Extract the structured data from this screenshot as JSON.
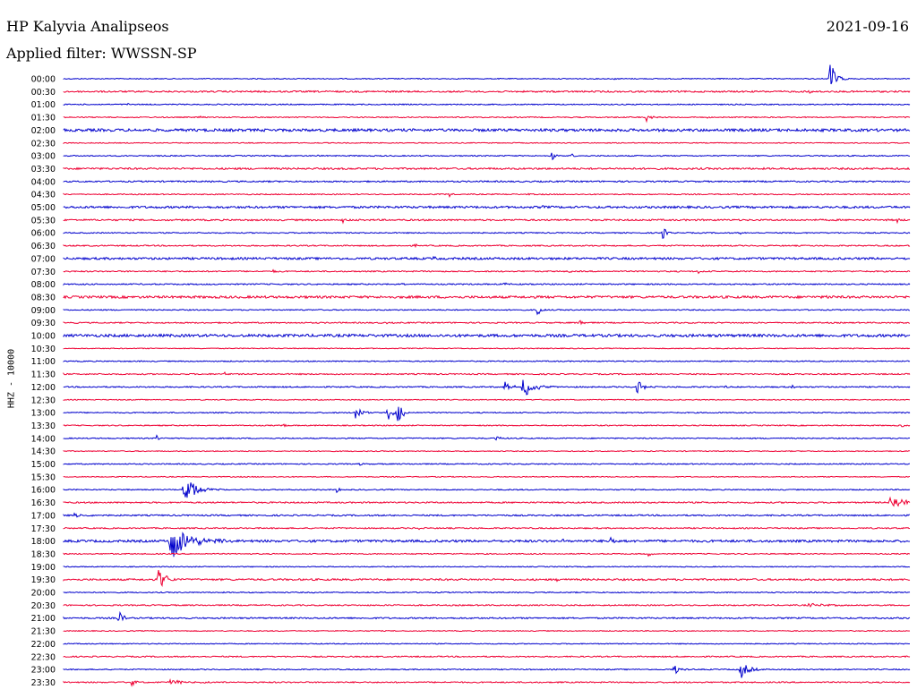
{
  "header": {
    "station": "HP Kalyvia Analipseos",
    "date": "2021-09-16",
    "filter": "Applied filter: WWSSN-SP"
  },
  "chart_data": {
    "type": "line",
    "title": "HP Kalyvia Analipseos",
    "ylabel": "HHZ - 10000",
    "colors": [
      "#0000cc",
      "#ee0033"
    ],
    "rows": [
      {
        "label": "00:00",
        "noise": 0.5,
        "events": [
          {
            "x": 0.905,
            "amp": 24,
            "dur": 0.006
          },
          {
            "x": 0.65,
            "amp": 1.5,
            "dur": 0.002
          }
        ]
      },
      {
        "label": "00:30",
        "noise": 0.9,
        "events": [
          {
            "x": 0.88,
            "amp": 2.5,
            "dur": 0.004
          }
        ]
      },
      {
        "label": "01:00",
        "noise": 0.6,
        "events": [
          {
            "x": 0.074,
            "amp": 2,
            "dur": 0.003
          },
          {
            "x": 0.9,
            "amp": 2,
            "dur": 0.002
          }
        ]
      },
      {
        "label": "01:30",
        "noise": 0.6,
        "events": [
          {
            "x": 0.16,
            "amp": 2.5,
            "dur": 0.002
          },
          {
            "x": 0.688,
            "amp": 8,
            "dur": 0.004
          },
          {
            "x": 0.76,
            "amp": 1.5,
            "dur": 0.002
          }
        ]
      },
      {
        "label": "02:00",
        "noise": 1.5,
        "events": []
      },
      {
        "label": "02:30",
        "noise": 0.5,
        "events": []
      },
      {
        "label": "03:00",
        "noise": 0.6,
        "events": [
          {
            "x": 0.576,
            "amp": 7,
            "dur": 0.005
          },
          {
            "x": 0.6,
            "amp": 2.5,
            "dur": 0.003
          },
          {
            "x": 0.3,
            "amp": 1.5,
            "dur": 0.002
          }
        ]
      },
      {
        "label": "03:30",
        "noise": 1.0,
        "events": [
          {
            "x": 0.63,
            "amp": 1.5,
            "dur": 0.002
          }
        ]
      },
      {
        "label": "04:00",
        "noise": 0.8,
        "events": [
          {
            "x": 0.43,
            "amp": 1.5,
            "dur": 0.002
          },
          {
            "x": 0.77,
            "amp": 1.5,
            "dur": 0.002
          }
        ]
      },
      {
        "label": "04:30",
        "noise": 0.6,
        "events": [
          {
            "x": 0.456,
            "amp": 4,
            "dur": 0.002
          },
          {
            "x": 0.55,
            "amp": 1.5,
            "dur": 0.002
          }
        ]
      },
      {
        "label": "05:00",
        "noise": 1.2,
        "events": [
          {
            "x": 0.567,
            "amp": 3,
            "dur": 0.002
          }
        ]
      },
      {
        "label": "05:30",
        "noise": 0.9,
        "events": [
          {
            "x": 0.33,
            "amp": 3,
            "dur": 0.003
          },
          {
            "x": 0.985,
            "amp": 3,
            "dur": 0.002
          }
        ]
      },
      {
        "label": "06:00",
        "noise": 0.6,
        "events": [
          {
            "x": 0.707,
            "amp": 10,
            "dur": 0.004
          },
          {
            "x": 0.1,
            "amp": 1.5,
            "dur": 0.002
          },
          {
            "x": 0.8,
            "amp": 1.5,
            "dur": 0.002
          }
        ]
      },
      {
        "label": "06:30",
        "noise": 0.7,
        "events": [
          {
            "x": 0.415,
            "amp": 2.5,
            "dur": 0.002
          },
          {
            "x": 0.645,
            "amp": 2.5,
            "dur": 0.002
          }
        ]
      },
      {
        "label": "07:00",
        "noise": 1.2,
        "events": [
          {
            "x": 0.437,
            "amp": 2,
            "dur": 0.003
          }
        ]
      },
      {
        "label": "07:30",
        "noise": 0.7,
        "events": [
          {
            "x": 0.248,
            "amp": 4,
            "dur": 0.002
          },
          {
            "x": 0.595,
            "amp": 2.5,
            "dur": 0.004
          },
          {
            "x": 0.75,
            "amp": 3,
            "dur": 0.002
          }
        ]
      },
      {
        "label": "08:00",
        "noise": 0.7,
        "events": [
          {
            "x": 0.4,
            "amp": 1.5,
            "dur": 0.002
          },
          {
            "x": 0.52,
            "amp": 2,
            "dur": 0.006
          }
        ]
      },
      {
        "label": "08:30",
        "noise": 1.3,
        "events": [
          {
            "x": 0.9,
            "amp": 2.5,
            "dur": 0.002
          }
        ]
      },
      {
        "label": "09:00",
        "noise": 0.6,
        "events": [
          {
            "x": 0.559,
            "amp": 10,
            "dur": 0.004
          },
          {
            "x": 0.51,
            "amp": 2,
            "dur": 0.002
          }
        ]
      },
      {
        "label": "09:30",
        "noise": 0.7,
        "events": [
          {
            "x": 0.61,
            "amp": 5,
            "dur": 0.003
          },
          {
            "x": 0.38,
            "amp": 1.5,
            "dur": 0.002
          }
        ]
      },
      {
        "label": "10:00",
        "noise": 1.5,
        "events": []
      },
      {
        "label": "10:30",
        "noise": 0.5,
        "events": []
      },
      {
        "label": "11:00",
        "noise": 0.6,
        "events": []
      },
      {
        "label": "11:30",
        "noise": 0.7,
        "events": [
          {
            "x": 0.19,
            "amp": 3,
            "dur": 0.002
          }
        ]
      },
      {
        "label": "12:00",
        "noise": 0.7,
        "events": [
          {
            "x": 0.52,
            "amp": 8,
            "dur": 0.006
          },
          {
            "x": 0.542,
            "amp": 17,
            "dur": 0.01
          },
          {
            "x": 0.677,
            "amp": 10,
            "dur": 0.006
          },
          {
            "x": 0.78,
            "amp": 2,
            "dur": 0.003
          },
          {
            "x": 0.86,
            "amp": 2,
            "dur": 0.003
          }
        ]
      },
      {
        "label": "12:30",
        "noise": 0.5,
        "events": []
      },
      {
        "label": "13:00",
        "noise": 0.6,
        "events": [
          {
            "x": 0.344,
            "amp": 12,
            "dur": 0.006
          },
          {
            "x": 0.382,
            "amp": 12,
            "dur": 0.005
          },
          {
            "x": 0.394,
            "amp": 14,
            "dur": 0.006
          }
        ]
      },
      {
        "label": "13:30",
        "noise": 0.6,
        "events": [
          {
            "x": 0.26,
            "amp": 2,
            "dur": 0.002
          },
          {
            "x": 0.99,
            "amp": 3,
            "dur": 0.003
          }
        ]
      },
      {
        "label": "14:00",
        "noise": 0.6,
        "events": [
          {
            "x": 0.11,
            "amp": 5,
            "dur": 0.003
          },
          {
            "x": 0.51,
            "amp": 3,
            "dur": 0.005
          }
        ]
      },
      {
        "label": "14:30",
        "noise": 0.5,
        "events": []
      },
      {
        "label": "15:00",
        "noise": 0.6,
        "events": [
          {
            "x": 0.35,
            "amp": 2,
            "dur": 0.002
          }
        ]
      },
      {
        "label": "15:30",
        "noise": 0.5,
        "events": []
      },
      {
        "label": "16:00",
        "noise": 0.6,
        "events": [
          {
            "x": 0.141,
            "amp": 20,
            "dur": 0.012
          },
          {
            "x": 0.322,
            "amp": 5,
            "dur": 0.003
          }
        ]
      },
      {
        "label": "16:30",
        "noise": 0.8,
        "events": [
          {
            "x": 0.976,
            "amp": 8,
            "dur": 0.02
          }
        ]
      },
      {
        "label": "17:00",
        "noise": 0.8,
        "events": [
          {
            "x": 0.012,
            "amp": 3,
            "dur": 0.01
          }
        ]
      },
      {
        "label": "17:30",
        "noise": 0.7,
        "events": [
          {
            "x": 0.42,
            "amp": 1.5,
            "dur": 0.002
          }
        ]
      },
      {
        "label": "18:00",
        "noise": 1.3,
        "events": [
          {
            "x": 0.125,
            "amp": 24,
            "dur": 0.02
          },
          {
            "x": 0.645,
            "amp": 5,
            "dur": 0.005
          },
          {
            "x": 0.59,
            "amp": 2,
            "dur": 0.002
          }
        ]
      },
      {
        "label": "18:30",
        "noise": 0.6,
        "events": [
          {
            "x": 0.69,
            "amp": 4,
            "dur": 0.003
          }
        ]
      },
      {
        "label": "19:00",
        "noise": 0.5,
        "events": []
      },
      {
        "label": "19:30",
        "noise": 1.0,
        "events": [
          {
            "x": 0.112,
            "amp": 14,
            "dur": 0.008
          },
          {
            "x": 0.58,
            "amp": 3,
            "dur": 0.003
          }
        ]
      },
      {
        "label": "20:00",
        "noise": 0.6,
        "events": []
      },
      {
        "label": "20:30",
        "noise": 0.7,
        "events": [
          {
            "x": 0.88,
            "amp": 2,
            "dur": 0.02
          },
          {
            "x": 0.39,
            "amp": 2,
            "dur": 0.002
          }
        ]
      },
      {
        "label": "21:00",
        "noise": 0.8,
        "events": [
          {
            "x": 0.064,
            "amp": 10,
            "dur": 0.005
          }
        ]
      },
      {
        "label": "21:30",
        "noise": 0.5,
        "events": []
      },
      {
        "label": "22:00",
        "noise": 0.5,
        "events": [
          {
            "x": 0.05,
            "amp": 2,
            "dur": 0.002
          }
        ]
      },
      {
        "label": "22:30",
        "noise": 0.7,
        "events": []
      },
      {
        "label": "23:00",
        "noise": 0.6,
        "events": [
          {
            "x": 0.72,
            "amp": 7,
            "dur": 0.006
          },
          {
            "x": 0.799,
            "amp": 12,
            "dur": 0.008
          }
        ]
      },
      {
        "label": "23:30",
        "noise": 0.7,
        "events": [
          {
            "x": 0.08,
            "amp": 6,
            "dur": 0.004
          },
          {
            "x": 0.125,
            "amp": 3,
            "dur": 0.02
          },
          {
            "x": 0.58,
            "amp": 2,
            "dur": 0.002
          }
        ]
      }
    ]
  }
}
